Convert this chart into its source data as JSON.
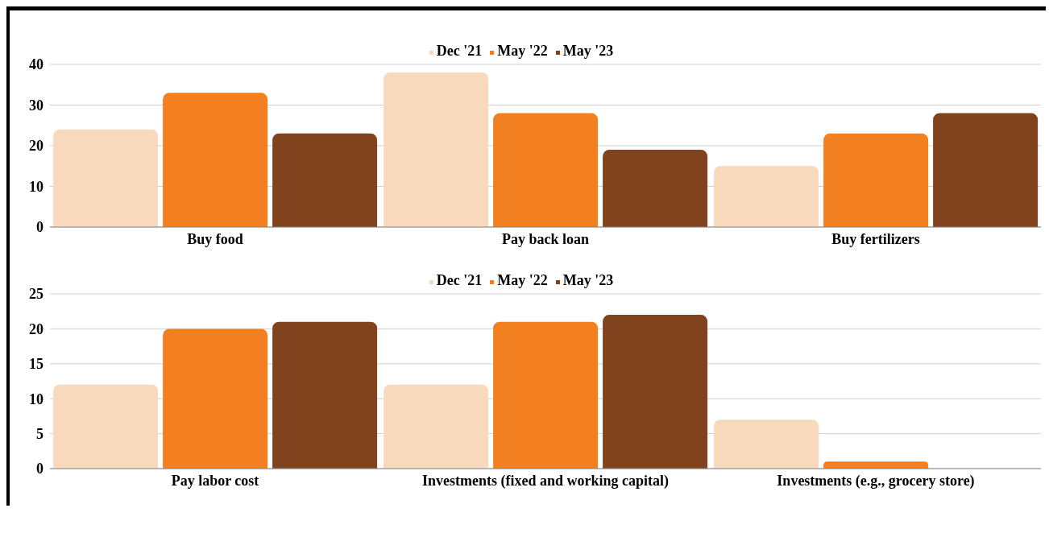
{
  "chart_data": [
    {
      "type": "bar",
      "categories": [
        "Buy food",
        "Pay back loan",
        "Buy fertilizers"
      ],
      "series": [
        {
          "name": "Dec '21",
          "color": "#f9d9bb",
          "values": [
            24,
            38,
            15
          ]
        },
        {
          "name": "May '22",
          "color": "#f28020",
          "values": [
            33,
            28,
            23
          ]
        },
        {
          "name": "May '23",
          "color": "#80431e",
          "values": [
            23,
            19,
            28
          ]
        }
      ],
      "ylim": [
        0,
        40
      ],
      "yticks": [
        0,
        10,
        20,
        30,
        40
      ],
      "grid": "y",
      "legend": "top"
    },
    {
      "type": "bar",
      "categories": [
        "Pay labor cost",
        "Investments (fixed and working capital)",
        "Investments (e.g., grocery store)"
      ],
      "series": [
        {
          "name": "Dec '21",
          "color": "#f9d9bb",
          "values": [
            12,
            12,
            7
          ]
        },
        {
          "name": "May '22",
          "color": "#f28020",
          "values": [
            20,
            21,
            1
          ]
        },
        {
          "name": "May '23",
          "color": "#80431e",
          "values": [
            21,
            22,
            0
          ]
        }
      ],
      "ylim": [
        0,
        25
      ],
      "yticks": [
        0,
        5,
        10,
        15,
        20,
        25
      ],
      "grid": "y",
      "legend": "top"
    }
  ]
}
